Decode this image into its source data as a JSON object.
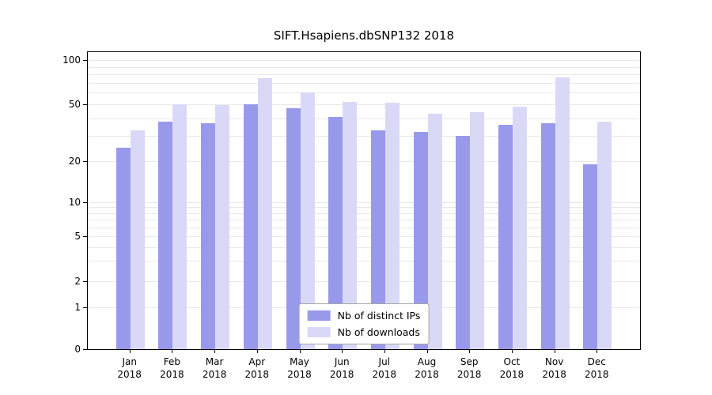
{
  "title": "SIFT.Hsapiens.dbSNP132 2018",
  "chart_data": {
    "type": "bar",
    "title": "SIFT.Hsapiens.dbSNP132 2018",
    "categories": [
      "Jan 2018",
      "Feb 2018",
      "Mar 2018",
      "Apr 2018",
      "May 2018",
      "Jun 2018",
      "Jul 2018",
      "Aug 2018",
      "Sep 2018",
      "Oct 2018",
      "Nov 2018",
      "Dec 2018"
    ],
    "series": [
      {
        "name": "Nb of distinct IPs",
        "color": "#9999ec",
        "values": [
          25,
          38,
          37,
          50,
          47,
          41,
          33,
          32,
          30,
          36,
          37,
          19
        ]
      },
      {
        "name": "Nb of downloads",
        "color": "#d9d9f7",
        "values": [
          33,
          50,
          49,
          75,
          60,
          52,
          51,
          43,
          44,
          48,
          76,
          38
        ]
      }
    ],
    "xlabel": "",
    "ylabel": "",
    "yticks": [
      0,
      1,
      2,
      5,
      10,
      20,
      50,
      100
    ],
    "yscale": "log (linear segment below 1)",
    "ylim": [
      0,
      115
    ],
    "grid": true,
    "legend_position": "lower center inside plot"
  },
  "colors": {
    "background": "#ffffff",
    "axis": "#000000",
    "grid": "#e9e9e9",
    "legend_border": "#a6a6a6",
    "series_ips": "#9999ec",
    "series_downloads": "#d9d9f7"
  }
}
